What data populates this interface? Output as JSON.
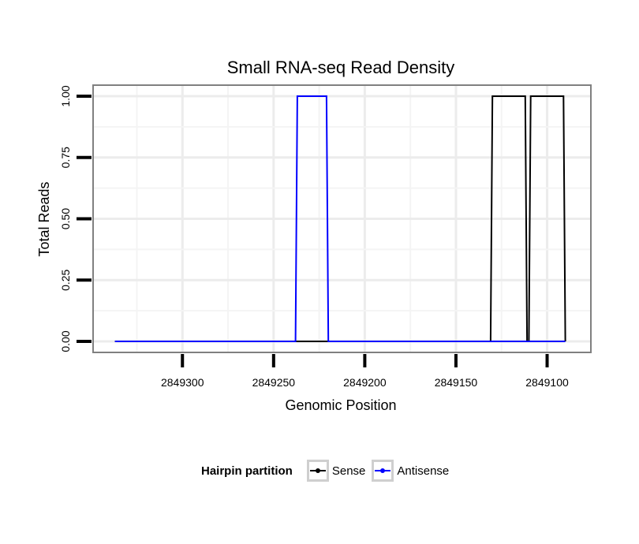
{
  "chart_data": {
    "type": "line",
    "title": "Small RNA-seq Read Density",
    "xlabel": "Genomic Position",
    "ylabel": "Total Reads",
    "xlim": [
      2849349,
      2849076
    ],
    "ylim": [
      -0.045,
      1.045
    ],
    "x_reversed": true,
    "x_ticks": [
      2849300,
      2849250,
      2849200,
      2849150,
      2849100
    ],
    "x_tick_labels": [
      "2849300",
      "2849250",
      "2849200",
      "2849150",
      "2849100"
    ],
    "y_ticks": [
      0.0,
      0.25,
      0.5,
      0.75,
      1.0
    ],
    "y_tick_labels": [
      "0.00",
      "0.25",
      "0.50",
      "0.75",
      "1.00"
    ],
    "grid": true,
    "legend_title": "Hairpin partition",
    "legend_position": "bottom",
    "series": [
      {
        "name": "Sense",
        "color": "#000000",
        "x": [
          2849337,
          2849131,
          2849130,
          2849112,
          2849111,
          2849110,
          2849109,
          2849091,
          2849090
        ],
        "y": [
          0,
          0,
          1,
          1,
          0,
          0,
          1,
          1,
          0
        ]
      },
      {
        "name": "Antisense",
        "color": "#0000ff",
        "x": [
          2849337,
          2849238,
          2849237,
          2849221,
          2849220,
          2849090
        ],
        "y": [
          0,
          0,
          1,
          1,
          0,
          0
        ]
      }
    ]
  }
}
